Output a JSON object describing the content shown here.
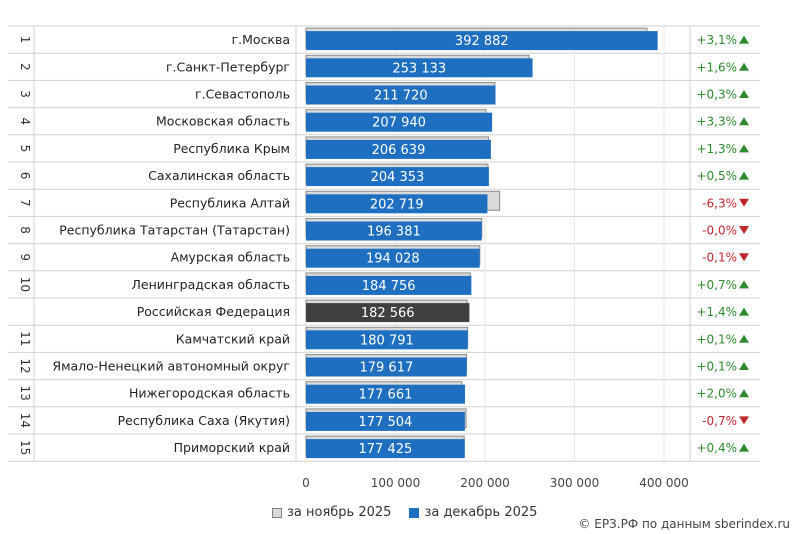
{
  "chart_data": {
    "type": "bar",
    "orientation": "horizontal",
    "xlim": [
      0,
      400000
    ],
    "x_ticks": [
      "0",
      "100 000",
      "200 000",
      "300 000",
      "400 000"
    ],
    "x_tick_values": [
      0,
      100000,
      200000,
      300000,
      400000
    ],
    "grid": true,
    "legend_position": "bottom",
    "colors": {
      "nov": "#d9d9d9",
      "dec": "#1f6fc0",
      "rf": "#404040",
      "up": "#2e8b2e",
      "down": "#c0272d"
    },
    "rows": [
      {
        "rank": "1",
        "region": "г.Москва",
        "nov": 381000,
        "dec": 392882,
        "dec_label": "392 882",
        "change": "+3,1%",
        "dir": "up"
      },
      {
        "rank": "2",
        "region": "г.Санкт-Петербург",
        "nov": 249200,
        "dec": 253133,
        "dec_label": "253 133",
        "change": "+1,6%",
        "dir": "up"
      },
      {
        "rank": "3",
        "region": "г.Севастополь",
        "nov": 211100,
        "dec": 211720,
        "dec_label": "211 720",
        "change": "+0,3%",
        "dir": "up"
      },
      {
        "rank": "4",
        "region": "Московская область",
        "nov": 201300,
        "dec": 207940,
        "dec_label": "207 940",
        "change": "+3,3%",
        "dir": "up"
      },
      {
        "rank": "5",
        "region": "Республика Крым",
        "nov": 204000,
        "dec": 206639,
        "dec_label": "206 639",
        "change": "+1,3%",
        "dir": "up"
      },
      {
        "rank": "6",
        "region": "Сахалинская область",
        "nov": 203300,
        "dec": 204353,
        "dec_label": "204 353",
        "change": "+0,5%",
        "dir": "up"
      },
      {
        "rank": "7",
        "region": "Республика Алтай",
        "nov": 216300,
        "dec": 202719,
        "dec_label": "202 719",
        "change": "-6,3%",
        "dir": "down"
      },
      {
        "rank": "8",
        "region": "Республика Татарстан (Татарстан)",
        "nov": 196400,
        "dec": 196381,
        "dec_label": "196 381",
        "change": "-0,0%",
        "dir": "down"
      },
      {
        "rank": "9",
        "region": "Амурская область",
        "nov": 194200,
        "dec": 194028,
        "dec_label": "194 028",
        "change": "-0,1%",
        "dir": "down"
      },
      {
        "rank": "10",
        "region": "Ленинградская область",
        "nov": 183500,
        "dec": 184756,
        "dec_label": "184 756",
        "change": "+0,7%",
        "dir": "up"
      },
      {
        "rank": "",
        "region": "Российская Федерация",
        "nov": 180000,
        "dec": 182566,
        "dec_label": "182 566",
        "change": "+1,4%",
        "dir": "up",
        "highlight": true
      },
      {
        "rank": "11",
        "region": "Камчатский край",
        "nov": 180600,
        "dec": 180791,
        "dec_label": "180 791",
        "change": "+0,1%",
        "dir": "up"
      },
      {
        "rank": "12",
        "region": "Ямало-Ненецкий автономный округ",
        "nov": 179400,
        "dec": 179617,
        "dec_label": "179 617",
        "change": "+0,1%",
        "dir": "up"
      },
      {
        "rank": "13",
        "region": "Нижегородская область",
        "nov": 174200,
        "dec": 177661,
        "dec_label": "177 661",
        "change": "+2,0%",
        "dir": "up"
      },
      {
        "rank": "14",
        "region": "Республика Саха (Якутия)",
        "nov": 178800,
        "dec": 177504,
        "dec_label": "177 504",
        "change": "-0,7%",
        "dir": "down"
      },
      {
        "rank": "15",
        "region": "Приморский край",
        "nov": 176700,
        "dec": 177425,
        "dec_label": "177 425",
        "change": "+0,4%",
        "dir": "up"
      }
    ]
  },
  "legend": {
    "nov_label": "за ноябрь 2025",
    "dec_label": "за декабрь 2025"
  },
  "source": "© ЕРЗ.РФ по данным sberindex.ru"
}
